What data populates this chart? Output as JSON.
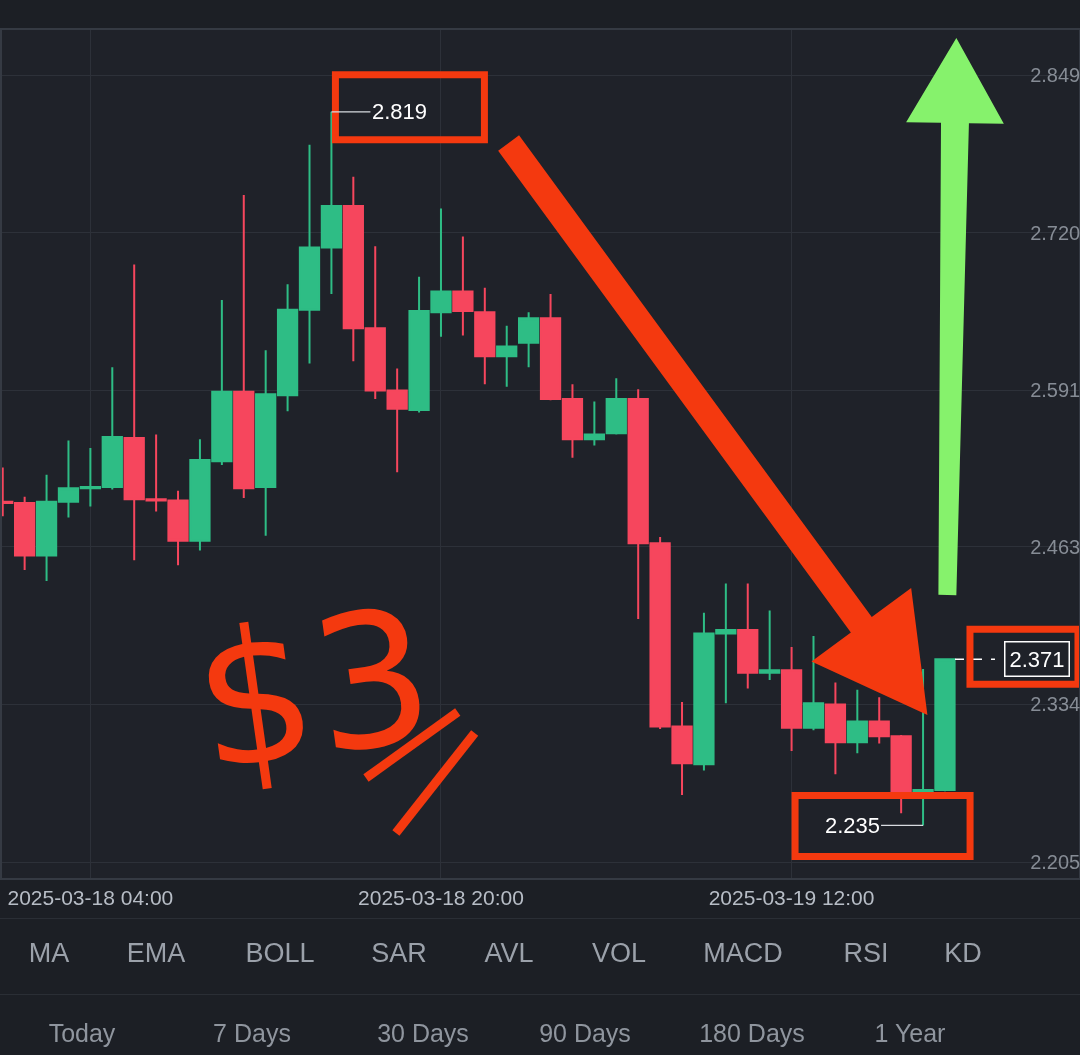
{
  "chart_data": {
    "type": "candlestick",
    "x": [
      "2025-03-18T00:00",
      "2025-03-18T01:00",
      "2025-03-18T02:00",
      "2025-03-18T03:00",
      "2025-03-18T04:00",
      "2025-03-18T05:00",
      "2025-03-18T06:00",
      "2025-03-18T07:00",
      "2025-03-18T08:00",
      "2025-03-18T09:00",
      "2025-03-18T10:00",
      "2025-03-18T11:00",
      "2025-03-18T12:00",
      "2025-03-18T13:00",
      "2025-03-18T14:00",
      "2025-03-18T15:00",
      "2025-03-18T16:00",
      "2025-03-18T17:00",
      "2025-03-18T18:00",
      "2025-03-18T19:00",
      "2025-03-18T20:00",
      "2025-03-18T21:00",
      "2025-03-18T22:00",
      "2025-03-18T23:00",
      "2025-03-19T00:00",
      "2025-03-19T01:00",
      "2025-03-19T02:00",
      "2025-03-19T03:00",
      "2025-03-19T04:00",
      "2025-03-19T05:00",
      "2025-03-19T06:00",
      "2025-03-19T07:00",
      "2025-03-19T08:00",
      "2025-03-19T09:00",
      "2025-03-19T10:00",
      "2025-03-19T11:00",
      "2025-03-19T12:00",
      "2025-03-19T13:00",
      "2025-03-19T14:00",
      "2025-03-19T15:00",
      "2025-03-19T16:00",
      "2025-03-19T17:00",
      "2025-03-19T18:00",
      "2025-03-19T19:00"
    ],
    "ohlc": [
      [
        2.5,
        2.528,
        2.488,
        2.499
      ],
      [
        2.499,
        2.504,
        2.444,
        2.456
      ],
      [
        2.456,
        2.522,
        2.435,
        2.5
      ],
      [
        2.5,
        2.55,
        2.487,
        2.511
      ],
      [
        2.511,
        2.544,
        2.496,
        2.512
      ],
      [
        2.512,
        2.61,
        2.51,
        2.553
      ],
      [
        2.552,
        2.694,
        2.452,
        2.502
      ],
      [
        2.502,
        2.555,
        2.492,
        2.501
      ],
      [
        2.501,
        2.509,
        2.448,
        2.468
      ],
      [
        2.468,
        2.551,
        2.46,
        2.534
      ],
      [
        2.533,
        2.665,
        2.53,
        2.59
      ],
      [
        2.59,
        2.751,
        2.503,
        2.511
      ],
      [
        2.512,
        2.624,
        2.472,
        2.588
      ],
      [
        2.587,
        2.678,
        2.574,
        2.657
      ],
      [
        2.657,
        2.792,
        2.613,
        2.708
      ],
      [
        2.708,
        2.819,
        2.67,
        2.742
      ],
      [
        2.742,
        2.766,
        2.615,
        2.642
      ],
      [
        2.642,
        2.709,
        2.584,
        2.591
      ],
      [
        2.591,
        2.609,
        2.524,
        2.576
      ],
      [
        2.575,
        2.684,
        2.573,
        2.656
      ],
      [
        2.655,
        2.74,
        2.635,
        2.672
      ],
      [
        2.672,
        2.717,
        2.636,
        2.656
      ],
      [
        2.655,
        2.675,
        2.596,
        2.619
      ],
      [
        2.619,
        2.644,
        2.594,
        2.627
      ],
      [
        2.63,
        2.655,
        2.61,
        2.65
      ],
      [
        2.65,
        2.67,
        2.583,
        2.584
      ],
      [
        2.584,
        2.596,
        2.536,
        2.551
      ],
      [
        2.551,
        2.582,
        2.546,
        2.555
      ],
      [
        2.556,
        2.601,
        2.555,
        2.584
      ],
      [
        2.584,
        2.592,
        2.404,
        2.466
      ],
      [
        2.466,
        2.471,
        2.314,
        2.316
      ],
      [
        2.316,
        2.336,
        2.26,
        2.286
      ],
      [
        2.285,
        2.409,
        2.28,
        2.392
      ],
      [
        2.392,
        2.433,
        2.335,
        2.395
      ],
      [
        2.395,
        2.433,
        2.347,
        2.36
      ],
      [
        2.36,
        2.411,
        2.354,
        2.362
      ],
      [
        2.362,
        2.381,
        2.296,
        2.315
      ],
      [
        2.315,
        2.39,
        2.313,
        2.335
      ],
      [
        2.334,
        2.352,
        2.277,
        2.303
      ],
      [
        2.303,
        2.346,
        2.294,
        2.32
      ],
      [
        2.32,
        2.34,
        2.302,
        2.308
      ],
      [
        2.308,
        2.309,
        2.245,
        2.26
      ],
      [
        2.26,
        2.363,
        2.235,
        2.264
      ],
      [
        2.264,
        2.371,
        2.263,
        2.371
      ]
    ],
    "colors": [
      "#f6465d",
      "#f6465d",
      "#2ebd85",
      "#2ebd85",
      "#2ebd85",
      "#2ebd85",
      "#f6465d",
      "#f6465d",
      "#f6465d",
      "#2ebd85",
      "#2ebd85",
      "#f6465d",
      "#2ebd85",
      "#2ebd85",
      "#2ebd85",
      "#2ebd85",
      "#f6465d",
      "#f6465d",
      "#f6465d",
      "#2ebd85",
      "#2ebd85",
      "#f6465d",
      "#f6465d",
      "#2ebd85",
      "#2ebd85",
      "#f6465d",
      "#f6465d",
      "#2ebd85",
      "#2ebd85",
      "#f6465d",
      "#f6465d",
      "#f6465d",
      "#2ebd85",
      "#2ebd85",
      "#f6465d",
      "#2ebd85",
      "#f6465d",
      "#2ebd85",
      "#f6465d",
      "#2ebd85",
      "#f6465d",
      "#f6465d",
      "#2ebd85",
      "#2ebd85"
    ],
    "xlim": [
      "2025-03-17T23:58",
      "2025-03-20T01:07"
    ],
    "xticks": [
      {
        "value": "2025-03-18T04:00",
        "label": "2025-03-18 04:00"
      },
      {
        "value": "2025-03-18T20:00",
        "label": "2025-03-18 20:00"
      },
      {
        "value": "2025-03-19T12:00",
        "label": "2025-03-19 12:00"
      }
    ],
    "ylim": [
      2.192,
      2.886
    ],
    "yticks": [
      2.205,
      2.334,
      2.463,
      2.591,
      {
        "value": 2.72,
        "label": "2.720"
      },
      2.849
    ],
    "grid": true,
    "annotations": [
      {
        "text": "2.819",
        "x": "2025-03-18T15:00",
        "y": 2.819
      },
      {
        "text": "2.371",
        "x": "2025-03-19T19:00",
        "y": 2.371
      },
      {
        "text": "2.235",
        "x": "2025-03-19T18:00",
        "y": 2.235
      },
      "$3",
      "MA",
      "EMA",
      "BOLL",
      "SAR",
      "AVL",
      "VOL",
      "MACD",
      "RSI",
      "KD",
      "Today",
      "7 Days",
      "30 Days",
      "90 Days",
      "180 Days",
      "1 Year"
    ]
  }
}
